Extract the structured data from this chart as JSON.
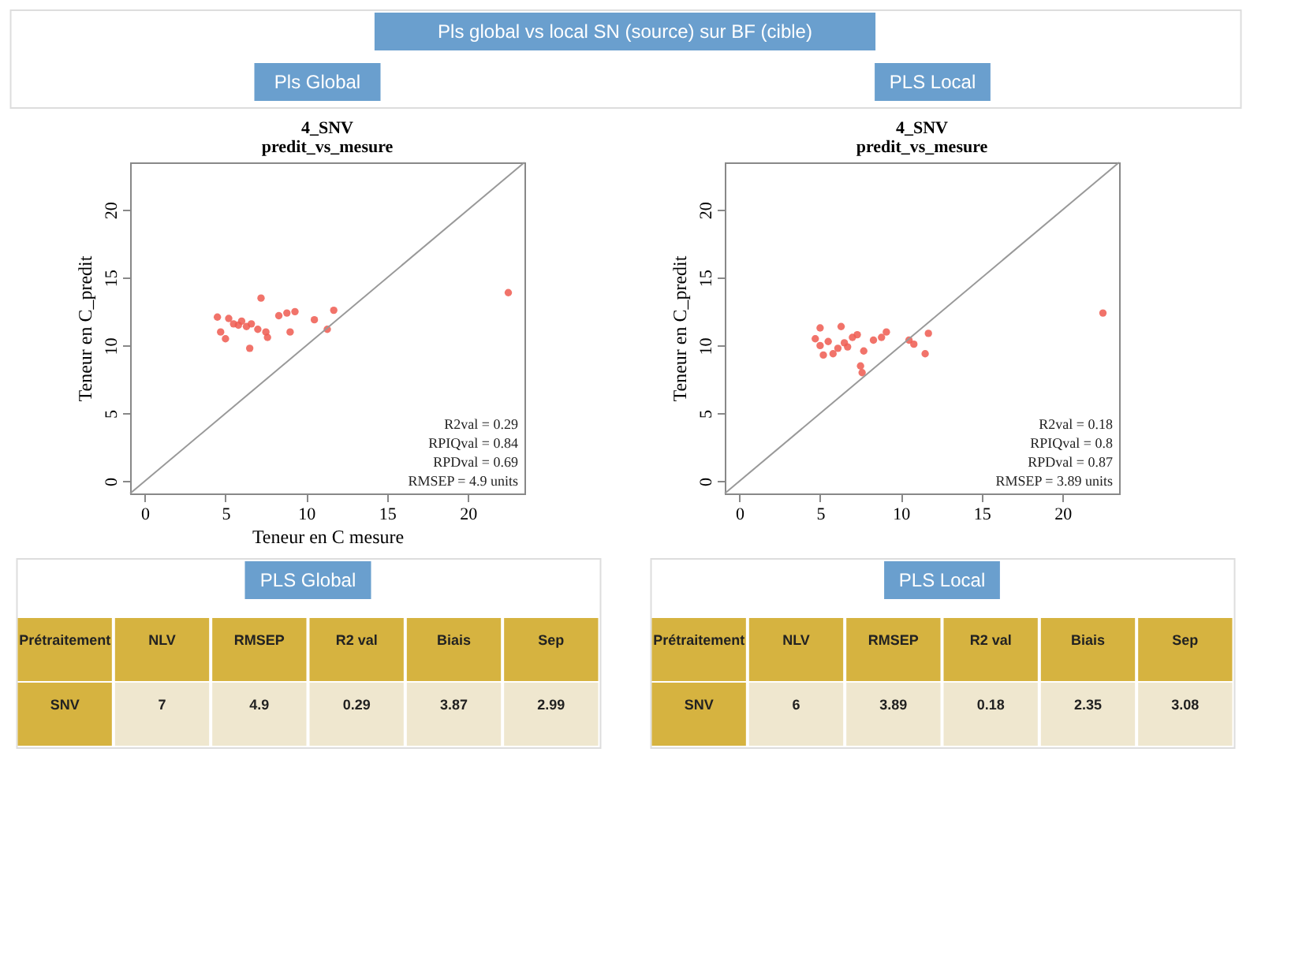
{
  "chart_data": [
    {
      "type": "other",
      "title": "Pls global vs local SN (source) sur BF (cible)",
      "annotations": [
        "Pls Global",
        "PLS Local"
      ]
    },
    {
      "type": "scatter",
      "title": "4_SNV",
      "subtitle": "predit_vs_mesure",
      "xlabel": "Teneur en C  mesure",
      "ylabel": "Teneur en C_predit",
      "xlim": [
        -0.9,
        23.5
      ],
      "ylim": [
        -0.9,
        23.5
      ],
      "xticks": [
        0,
        5,
        10,
        15,
        20
      ],
      "yticks": [
        0,
        5,
        10,
        15,
        20
      ],
      "grid": false,
      "series": [
        {
          "type": "scatter",
          "marker": "circle",
          "color": "#ee5a50",
          "x": [
            4.5,
            4.7,
            5.0,
            5.2,
            5.5,
            5.8,
            6.0,
            6.3,
            6.5,
            6.6,
            7.0,
            7.2,
            7.5,
            7.6,
            8.3,
            8.8,
            9.0,
            9.3,
            10.5,
            11.3,
            11.7,
            22.5
          ],
          "values": [
            12.1,
            11.0,
            10.5,
            12.0,
            11.6,
            11.5,
            11.8,
            11.4,
            9.8,
            11.6,
            11.2,
            13.5,
            11.0,
            10.6,
            12.2,
            12.4,
            11.0,
            12.5,
            11.9,
            11.2,
            12.6,
            13.9
          ]
        },
        {
          "type": "line",
          "color": "#999999",
          "x": [
            -0.9,
            23.5
          ],
          "values": [
            -0.9,
            23.5
          ]
        }
      ],
      "annotations": [
        "R2val = 0.29",
        "RPIQval = 0.84",
        "RPDval = 0.69",
        "RMSEP = 4.9 units"
      ]
    },
    {
      "type": "scatter",
      "title": "4_SNV",
      "subtitle": "predit_vs_mesure",
      "ylabel": "Teneur en C_predit",
      "xlim": [
        -0.9,
        23.5
      ],
      "ylim": [
        -0.9,
        23.5
      ],
      "xticks": [
        0,
        5,
        10,
        15,
        20
      ],
      "yticks": [
        0,
        5,
        10,
        15,
        20
      ],
      "grid": false,
      "series": [
        {
          "type": "scatter",
          "marker": "circle",
          "color": "#ee5a50",
          "x": [
            4.7,
            5.0,
            5.0,
            5.2,
            5.5,
            5.8,
            6.1,
            6.3,
            6.5,
            6.7,
            7.0,
            7.3,
            7.5,
            7.6,
            7.7,
            8.3,
            8.8,
            9.1,
            10.5,
            10.8,
            11.5,
            11.7,
            22.5
          ],
          "values": [
            10.5,
            11.3,
            10.0,
            9.3,
            10.3,
            9.4,
            9.8,
            11.4,
            10.2,
            9.9,
            10.6,
            10.8,
            8.5,
            8.0,
            9.6,
            10.4,
            10.6,
            11.0,
            10.4,
            10.1,
            9.4,
            10.9,
            12.4
          ]
        },
        {
          "type": "line",
          "color": "#999999",
          "x": [
            -0.9,
            23.5
          ],
          "values": [
            -0.9,
            23.5
          ]
        }
      ],
      "annotations": [
        "R2val = 0.18",
        "RPIQval = 0.8",
        "RPDval = 0.87",
        "RMSEP = 3.89 units"
      ]
    },
    {
      "type": "other",
      "title": "PLS Global",
      "annotations": [
        "Prétraitement",
        "NLV",
        "RMSEP",
        "R2 val",
        "Biais",
        "Sep",
        "SNV",
        "7",
        "4.9",
        "0.29",
        "3.87",
        "2.99"
      ]
    },
    {
      "type": "other",
      "title": "PLS Local",
      "annotations": [
        "Prétraitement",
        "NLV",
        "RMSEP",
        "R2 val",
        "Biais",
        "Sep",
        "SNV",
        "6",
        "3.89",
        "0.18",
        "2.35",
        "3.08"
      ]
    }
  ]
}
